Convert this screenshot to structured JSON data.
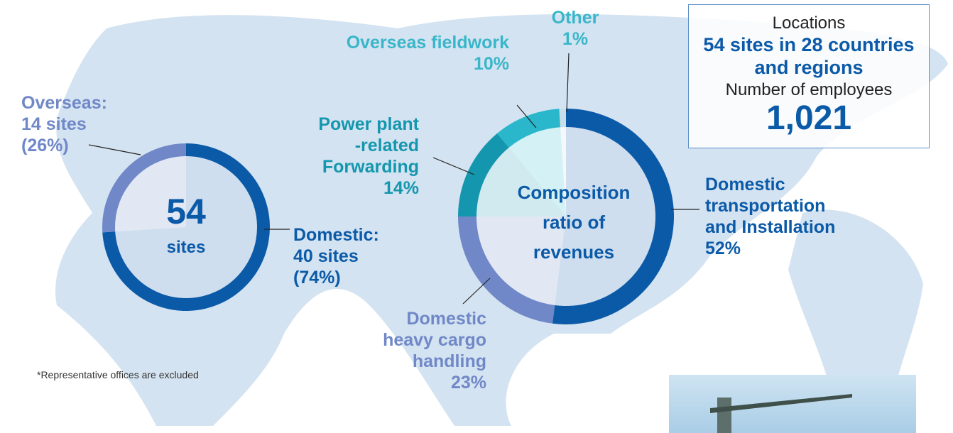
{
  "chart_data": [
    {
      "type": "pie",
      "center_value": 54,
      "center_label": "sites",
      "categories": [
        "Domestic:",
        "Overseas:"
      ],
      "site_labels": [
        "40 sites",
        "14 sites"
      ],
      "values": [
        74,
        26
      ],
      "value_labels": [
        "(74%)",
        "(26%)"
      ],
      "colors": [
        "#0b5aa8",
        "#7088c8"
      ]
    },
    {
      "type": "pie",
      "title": "Composition\nratio of\nrevenues",
      "categories": [
        "Domestic\ntransportation\nand Installation",
        "Domestic\nheavy cargo\nhandling",
        "Power plant\n-related\nForwarding",
        "Overseas fieldwork",
        "Other"
      ],
      "values": [
        52,
        23,
        14,
        10,
        1
      ],
      "value_labels": [
        "52%",
        "23%",
        "14%",
        "10%",
        "1%"
      ],
      "colors": [
        "#0b5aa8",
        "#7088c8",
        "#1497ae",
        "#2ab7cc",
        "#c9dde8"
      ]
    }
  ],
  "info_box": {
    "heading": "Locations",
    "locations": "54 sites in 28 countries\nand regions",
    "employees_heading": "Number of employees",
    "employees": "1,021"
  },
  "note": "*Representative offices are excluded"
}
